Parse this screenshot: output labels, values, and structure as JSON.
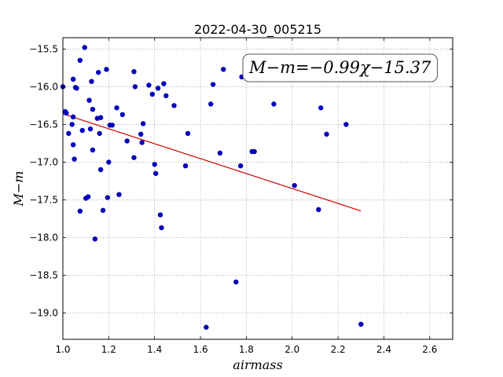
{
  "chart_data": {
    "type": "scatter",
    "title": "2022-04-30_005215",
    "xlabel": "airmass",
    "ylabel": "M−m",
    "xlim": [
      1.0,
      2.7
    ],
    "ylim": [
      -19.35,
      -15.35
    ],
    "y_inverted": true,
    "grid": true,
    "xticks": [
      "1.0",
      "1.2",
      "1.4",
      "1.6",
      "1.8",
      "2.0",
      "2.2",
      "2.4",
      "2.6"
    ],
    "yticks": [
      "−15.5",
      "−16.0",
      "−16.5",
      "−17.0",
      "−17.5",
      "−18.0",
      "−18.5",
      "−19.0"
    ],
    "annotation": "M−m=−0.99χ−15.37",
    "colors": {
      "points": "#0000b8",
      "fit": "#cc0000",
      "grid": "#808080"
    },
    "fit": {
      "slope": -0.99,
      "intercept": -15.37,
      "x_range": [
        1.0,
        2.3
      ]
    },
    "points": [
      [
        1.0,
        -16.0
      ],
      [
        1.01,
        -16.33
      ],
      [
        1.015,
        -16.35
      ],
      [
        1.025,
        -16.62
      ],
      [
        1.04,
        -16.5
      ],
      [
        1.045,
        -15.9
      ],
      [
        1.045,
        -16.4
      ],
      [
        1.045,
        -16.77
      ],
      [
        1.05,
        -16.96
      ],
      [
        1.055,
        -16.01
      ],
      [
        1.06,
        -16.02
      ],
      [
        1.075,
        -15.65
      ],
      [
        1.075,
        -17.65
      ],
      [
        1.085,
        -16.58
      ],
      [
        1.095,
        -15.48
      ],
      [
        1.1,
        -17.48
      ],
      [
        1.11,
        -17.46
      ],
      [
        1.115,
        -16.18
      ],
      [
        1.12,
        -16.56
      ],
      [
        1.125,
        -15.93
      ],
      [
        1.13,
        -16.3
      ],
      [
        1.13,
        -16.84
      ],
      [
        1.14,
        -18.02
      ],
      [
        1.15,
        -16.42
      ],
      [
        1.155,
        -15.81
      ],
      [
        1.16,
        -16.62
      ],
      [
        1.165,
        -16.41
      ],
      [
        1.165,
        -17.1
      ],
      [
        1.175,
        -17.64
      ],
      [
        1.19,
        -15.77
      ],
      [
        1.195,
        -17.47
      ],
      [
        1.2,
        -17.0
      ],
      [
        1.205,
        -16.51
      ],
      [
        1.215,
        -16.51
      ],
      [
        1.235,
        -16.28
      ],
      [
        1.245,
        -17.43
      ],
      [
        1.26,
        -16.37
      ],
      [
        1.28,
        -16.72
      ],
      [
        1.31,
        -15.8
      ],
      [
        1.31,
        -16.94
      ],
      [
        1.315,
        -16.0
      ],
      [
        1.34,
        -16.63
      ],
      [
        1.345,
        -16.74
      ],
      [
        1.35,
        -16.49
      ],
      [
        1.375,
        -15.98
      ],
      [
        1.39,
        -16.1
      ],
      [
        1.4,
        -17.03
      ],
      [
        1.405,
        -17.15
      ],
      [
        1.415,
        -16.02
      ],
      [
        1.425,
        -17.7
      ],
      [
        1.43,
        -17.87
      ],
      [
        1.44,
        -15.96
      ],
      [
        1.45,
        -16.12
      ],
      [
        1.485,
        -16.25
      ],
      [
        1.535,
        -17.05
      ],
      [
        1.545,
        -16.62
      ],
      [
        1.625,
        -19.19
      ],
      [
        1.645,
        -16.23
      ],
      [
        1.655,
        -15.97
      ],
      [
        1.685,
        -16.88
      ],
      [
        1.7,
        -15.77
      ],
      [
        1.755,
        -18.59
      ],
      [
        1.775,
        -17.05
      ],
      [
        1.78,
        -15.87
      ],
      [
        1.825,
        -16.86
      ],
      [
        1.835,
        -16.86
      ],
      [
        1.92,
        -16.23
      ],
      [
        2.01,
        -17.31
      ],
      [
        2.115,
        -17.63
      ],
      [
        2.125,
        -16.28
      ],
      [
        2.15,
        -16.63
      ],
      [
        2.235,
        -16.5
      ],
      [
        2.3,
        -19.15
      ]
    ]
  }
}
